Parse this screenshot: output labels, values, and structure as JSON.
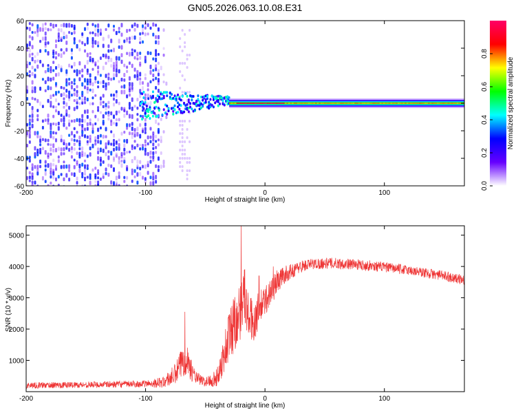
{
  "title": "GN05.2026.063.10.08.E31",
  "chart_data": [
    {
      "type": "heatmap",
      "name": "spectrogram",
      "xlabel": "Height of straight line (km)",
      "ylabel": "Frequency (Hz)",
      "xlim": [
        -200,
        167
      ],
      "ylim": [
        -60,
        60
      ],
      "xticks": [
        -200,
        -100,
        0,
        100
      ],
      "yticks": [
        -60,
        -40,
        -20,
        0,
        20,
        40,
        60
      ],
      "colorbar": {
        "label": "Normalized spectral amplitude",
        "range": [
          0.0,
          1.0
        ],
        "ticks": [
          0.0,
          0.2,
          0.4,
          0.6,
          0.8
        ],
        "tick_labels": [
          "0.0",
          "0.2",
          "0.4",
          "0.6",
          "0.8"
        ],
        "colormap": [
          "#ffffff",
          "#6600ff",
          "#0000ff",
          "#00ffff",
          "#00ff00",
          "#ffff00",
          "#ff0000",
          "#ff0066"
        ]
      },
      "features": {
        "noise_region_x": [
          -200,
          -90
        ],
        "noise_amplitude": 0.15,
        "secondary_noise_band_x": [
          -72,
          -62
        ],
        "carrier_frequency_hz": 0,
        "carrier_spread_x": [
          -105,
          -30
        ],
        "carrier_start_x": -30,
        "carrier_peak_x": [
          -25,
          15
        ],
        "carrier_amplitude_peak": 0.9,
        "carrier_amplitude_tail": 0.75
      }
    },
    {
      "type": "line",
      "name": "snr",
      "xlabel": "Height of straight line (km)",
      "ylabel": "SNR (10 * v/v)",
      "xlim": [
        -200,
        167
      ],
      "ylim": [
        0,
        5300
      ],
      "xticks": [
        -200,
        -100,
        0,
        100
      ],
      "yticks": [
        1000,
        2000,
        3000,
        4000,
        5000
      ],
      "color": "#ee3333",
      "series": [
        {
          "name": "SNR envelope",
          "x": [
            -200,
            -150,
            -100,
            -85,
            -75,
            -70,
            -66,
            -62,
            -58,
            -50,
            -40,
            -35,
            -30,
            -25,
            -20,
            -18,
            -15,
            -10,
            -5,
            0,
            5,
            10,
            15,
            20,
            25,
            30,
            40,
            50,
            60,
            70,
            80,
            90,
            100,
            110,
            120,
            130,
            140,
            150,
            160,
            167
          ],
          "y": [
            200,
            220,
            250,
            300,
            550,
            900,
            1150,
            700,
            450,
            300,
            450,
            1100,
            1800,
            2300,
            2600,
            3400,
            2500,
            2200,
            2600,
            2900,
            3200,
            3500,
            3700,
            3800,
            3900,
            4000,
            4080,
            4100,
            4100,
            4080,
            4050,
            4020,
            3980,
            3930,
            3880,
            3820,
            3760,
            3700,
            3620,
            3560
          ],
          "noise": [
            100,
            100,
            110,
            180,
            350,
            500,
            600,
            350,
            200,
            150,
            300,
            600,
            900,
            1000,
            900,
            1000,
            800,
            700,
            600,
            500,
            450,
            400,
            300,
            250,
            220,
            200,
            180,
            180,
            180,
            170,
            170,
            170,
            160,
            160,
            160,
            160,
            160,
            160,
            160,
            160
          ]
        }
      ],
      "spikes": [
        {
          "x": -67,
          "y": 2550
        },
        {
          "x": -20,
          "y": 5300
        },
        {
          "x": -5,
          "y": 3700
        },
        {
          "x": 7,
          "y": 4000
        }
      ]
    }
  ]
}
